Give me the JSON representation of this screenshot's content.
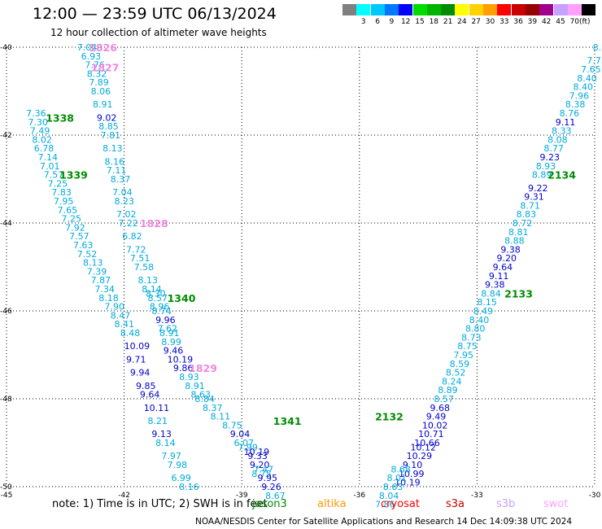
{
  "header": {
    "title": "12:00 — 23:59 UTC 06/13/2024",
    "subtitle": "12 hour collection of altimeter wave heights"
  },
  "legend": {
    "unit": "(ft)",
    "items": [
      {
        "color": "#808080",
        "label": ""
      },
      {
        "color": "#00ffff",
        "label": "3"
      },
      {
        "color": "#00c8ff",
        "label": "6"
      },
      {
        "color": "#0078ff",
        "label": "9"
      },
      {
        "color": "#0000ff",
        "label": "12"
      },
      {
        "color": "#00dc00",
        "label": "15"
      },
      {
        "color": "#00b400",
        "label": "18"
      },
      {
        "color": "#008c00",
        "label": "21"
      },
      {
        "color": "#ffff00",
        "label": "24"
      },
      {
        "color": "#ffd200",
        "label": "27"
      },
      {
        "color": "#ffa000",
        "label": "30"
      },
      {
        "color": "#ff0000",
        "label": "33"
      },
      {
        "color": "#c80000",
        "label": "36"
      },
      {
        "color": "#960000",
        "label": "39"
      },
      {
        "color": "#a0008c",
        "label": "42"
      },
      {
        "color": "#c8a0ff",
        "label": "45"
      },
      {
        "color": "#ffa0ff",
        "label": "70"
      },
      {
        "color": "#000000",
        "label": ""
      }
    ]
  },
  "chart_data": {
    "type": "scatter",
    "title": "12:00 — 23:59 UTC 06/13/2024",
    "subtitle": "12 hour collection of altimeter wave heights",
    "xlim": [
      -45,
      -30
    ],
    "ylim": [
      -50,
      -40
    ],
    "x_ticks": [
      -45,
      -42,
      -39,
      -36,
      -33,
      -30
    ],
    "y_ticks": [
      -40,
      -42,
      -44,
      -46,
      -48,
      -50
    ],
    "x_tick_labels": [
      "-45",
      "-42",
      "-39",
      "-36",
      "-33",
      "-30"
    ],
    "y_tick_labels": [
      "-40",
      "-42",
      "-44",
      "-46",
      "-48",
      "-50"
    ],
    "grid": true,
    "series": [
      {
        "name": "jason3",
        "color": "#00aadd",
        "points": [
          {
            "x": -43.2,
            "y": -40.0,
            "v": "7.04"
          },
          {
            "x": -43.1,
            "y": -40.2,
            "v": "6.93"
          },
          {
            "x": -43.0,
            "y": -40.4,
            "v": "7.76"
          },
          {
            "x": -42.95,
            "y": -40.6,
            "v": "8.32"
          },
          {
            "x": -42.9,
            "y": -40.8,
            "v": "7.89"
          },
          {
            "x": -42.85,
            "y": -41.0,
            "v": "8.06"
          },
          {
            "x": -42.8,
            "y": -41.3,
            "v": "8.91"
          },
          {
            "x": -42.7,
            "y": -41.6,
            "v": "9.02"
          },
          {
            "x": -42.65,
            "y": -41.8,
            "v": "8.85"
          },
          {
            "x": -42.6,
            "y": -42.0,
            "v": "7.81"
          },
          {
            "x": -42.55,
            "y": -42.3,
            "v": "8.13"
          },
          {
            "x": -42.5,
            "y": -42.6,
            "v": "8.16"
          },
          {
            "x": -42.45,
            "y": -42.8,
            "v": "7.11"
          },
          {
            "x": -42.35,
            "y": -43.0,
            "v": "8.37"
          },
          {
            "x": -42.3,
            "y": -43.3,
            "v": "7.04"
          },
          {
            "x": -42.25,
            "y": -43.5,
            "v": "8.23"
          },
          {
            "x": -42.2,
            "y": -43.8,
            "v": "7.02"
          },
          {
            "x": -42.15,
            "y": -44.0,
            "v": "7.22"
          },
          {
            "x": -42.05,
            "y": -44.3,
            "v": "6.82"
          },
          {
            "x": -41.95,
            "y": -44.6,
            "v": "7.72"
          },
          {
            "x": -41.85,
            "y": -44.8,
            "v": "7.51"
          },
          {
            "x": -41.75,
            "y": -45.0,
            "v": "7.58"
          },
          {
            "x": -41.65,
            "y": -45.3,
            "v": "8.13"
          },
          {
            "x": -41.55,
            "y": -45.5,
            "v": "8.14"
          },
          {
            "x": -41.45,
            "y": -45.6,
            "v": "8.30"
          },
          {
            "x": -41.4,
            "y": -45.7,
            "v": "8.57"
          },
          {
            "x": -41.35,
            "y": -45.9,
            "v": "8.96"
          },
          {
            "x": -41.3,
            "y": -46.0,
            "v": "8.74"
          },
          {
            "x": -41.2,
            "y": -46.2,
            "v": "9.96"
          },
          {
            "x": -41.15,
            "y": -46.4,
            "v": "7.62"
          },
          {
            "x": -41.1,
            "y": -46.5,
            "v": "8.91"
          },
          {
            "x": -41.05,
            "y": -46.7,
            "v": "8.99"
          },
          {
            "x": -41.0,
            "y": -46.9,
            "v": "9.46"
          },
          {
            "x": -40.9,
            "y": -47.1,
            "v": "10.19"
          },
          {
            "x": -40.75,
            "y": -47.3,
            "v": "9.86"
          },
          {
            "x": -40.6,
            "y": -47.5,
            "v": "8.93"
          },
          {
            "x": -40.45,
            "y": -47.7,
            "v": "8.91"
          },
          {
            "x": -40.3,
            "y": -47.9,
            "v": "8.63"
          },
          {
            "x": -40.2,
            "y": -48.0,
            "v": "8.84"
          },
          {
            "x": -40.0,
            "y": -48.2,
            "v": "8.37"
          },
          {
            "x": -39.8,
            "y": -48.4,
            "v": "8.11"
          },
          {
            "x": -39.5,
            "y": -48.6,
            "v": "8.75"
          },
          {
            "x": -39.3,
            "y": -48.8,
            "v": "9.04"
          },
          {
            "x": -39.2,
            "y": -49.0,
            "v": "6.07"
          },
          {
            "x": -39.1,
            "y": -49.1,
            "v": "7.99"
          },
          {
            "x": -38.95,
            "y": -49.2,
            "v": "10.19"
          },
          {
            "x": -38.85,
            "y": -49.3,
            "v": "9.33"
          },
          {
            "x": -38.8,
            "y": -49.5,
            "v": "9.20"
          },
          {
            "x": -38.75,
            "y": -49.7,
            "v": "8.75"
          },
          {
            "x": -38.7,
            "y": -49.6,
            "v": "7.47"
          },
          {
            "x": -38.6,
            "y": -49.8,
            "v": "9.95"
          },
          {
            "x": -38.5,
            "y": -50.0,
            "v": "9.26"
          },
          {
            "x": -38.4,
            "y": -50.2,
            "v": "8.67"
          }
        ]
      },
      {
        "name": "altika",
        "color": "#00aadd",
        "points": [
          {
            "x": -44.5,
            "y": -41.5,
            "v": "7.36"
          },
          {
            "x": -44.45,
            "y": -41.7,
            "v": "7.30"
          },
          {
            "x": -44.4,
            "y": -41.9,
            "v": "7.49"
          },
          {
            "x": -44.35,
            "y": -42.1,
            "v": "8.02"
          },
          {
            "x": -44.3,
            "y": -42.3,
            "v": "6.78"
          },
          {
            "x": -44.2,
            "y": -42.5,
            "v": "7.14"
          },
          {
            "x": -44.15,
            "y": -42.7,
            "v": "7.01"
          },
          {
            "x": -44.05,
            "y": -42.9,
            "v": "7.57"
          },
          {
            "x": -43.95,
            "y": -43.1,
            "v": "7.25"
          },
          {
            "x": -43.85,
            "y": -43.3,
            "v": "7.83"
          },
          {
            "x": -43.8,
            "y": -43.5,
            "v": "7.95"
          },
          {
            "x": -43.7,
            "y": -43.7,
            "v": "7.65"
          },
          {
            "x": -43.6,
            "y": -43.9,
            "v": "7.25"
          },
          {
            "x": -43.5,
            "y": -44.1,
            "v": "7.92"
          },
          {
            "x": -43.4,
            "y": -44.3,
            "v": "7.57"
          },
          {
            "x": -43.3,
            "y": -44.5,
            "v": "7.63"
          },
          {
            "x": -43.2,
            "y": -44.7,
            "v": "7.52"
          },
          {
            "x": -43.05,
            "y": -44.9,
            "v": "8.13"
          },
          {
            "x": -42.95,
            "y": -45.1,
            "v": "7.39"
          },
          {
            "x": -42.85,
            "y": -45.3,
            "v": "7.87"
          },
          {
            "x": -42.75,
            "y": -45.5,
            "v": "7.34"
          },
          {
            "x": -42.65,
            "y": -45.7,
            "v": "8.18"
          },
          {
            "x": -42.5,
            "y": -45.9,
            "v": "7.90"
          },
          {
            "x": -42.35,
            "y": -46.1,
            "v": "8.47"
          },
          {
            "x": -42.25,
            "y": -46.3,
            "v": "8.41"
          },
          {
            "x": -42.1,
            "y": -46.5,
            "v": "8.48"
          },
          {
            "x": -42.0,
            "y": -46.8,
            "v": "10.09"
          },
          {
            "x": -41.95,
            "y": -47.1,
            "v": "9.71"
          },
          {
            "x": -41.85,
            "y": -47.4,
            "v": "9.94"
          },
          {
            "x": -41.7,
            "y": -47.7,
            "v": "9.85"
          },
          {
            "x": -41.6,
            "y": -47.9,
            "v": "9.64"
          },
          {
            "x": -41.5,
            "y": -48.2,
            "v": "10.11"
          },
          {
            "x": -41.4,
            "y": -48.5,
            "v": "8.21"
          },
          {
            "x": -41.3,
            "y": -48.8,
            "v": "9.13"
          },
          {
            "x": -41.2,
            "y": -49.0,
            "v": "8.14"
          },
          {
            "x": -41.05,
            "y": -49.3,
            "v": "7.97"
          },
          {
            "x": -40.9,
            "y": -49.5,
            "v": "7.98"
          },
          {
            "x": -40.8,
            "y": -49.8,
            "v": "6.99"
          },
          {
            "x": -40.6,
            "y": -50.0,
            "v": "8.16"
          }
        ]
      },
      {
        "name": "cryosat",
        "color": "#00aadd",
        "points": [
          {
            "x": -30.05,
            "y": -40.0,
            "v": "8.28"
          },
          {
            "x": -30.2,
            "y": -40.3,
            "v": "7.75"
          },
          {
            "x": -30.35,
            "y": -40.5,
            "v": "7.65"
          },
          {
            "x": -30.45,
            "y": -40.7,
            "v": "8.40"
          },
          {
            "x": -30.55,
            "y": -40.9,
            "v": "8.40"
          },
          {
            "x": -30.65,
            "y": -41.1,
            "v": "7.96"
          },
          {
            "x": -30.75,
            "y": -41.3,
            "v": "8.38"
          },
          {
            "x": -30.9,
            "y": -41.5,
            "v": "8.76"
          },
          {
            "x": -31.0,
            "y": -41.7,
            "v": "9.11"
          },
          {
            "x": -31.1,
            "y": -41.9,
            "v": "8.33"
          },
          {
            "x": -31.2,
            "y": -42.1,
            "v": "8.08"
          },
          {
            "x": -31.3,
            "y": -42.3,
            "v": "8.77"
          },
          {
            "x": -31.4,
            "y": -42.5,
            "v": "9.23"
          },
          {
            "x": -31.5,
            "y": -42.7,
            "v": "8.93"
          },
          {
            "x": -31.6,
            "y": -42.9,
            "v": "8.89"
          },
          {
            "x": -31.7,
            "y": -43.2,
            "v": "9.22"
          },
          {
            "x": -31.8,
            "y": -43.4,
            "v": "9.31"
          },
          {
            "x": -31.9,
            "y": -43.6,
            "v": "8.71"
          },
          {
            "x": -32.0,
            "y": -43.8,
            "v": "8.83"
          },
          {
            "x": -32.1,
            "y": -44.0,
            "v": "8.72"
          },
          {
            "x": -32.2,
            "y": -44.2,
            "v": "8.81"
          },
          {
            "x": -32.3,
            "y": -44.4,
            "v": "8.88"
          },
          {
            "x": -32.4,
            "y": -44.6,
            "v": "9.38"
          },
          {
            "x": -32.5,
            "y": -44.8,
            "v": "9.20"
          },
          {
            "x": -32.6,
            "y": -45.0,
            "v": "9.64"
          },
          {
            "x": -32.7,
            "y": -45.2,
            "v": "9.11"
          },
          {
            "x": -32.8,
            "y": -45.4,
            "v": "9.38"
          },
          {
            "x": -32.9,
            "y": -45.6,
            "v": "8.84"
          },
          {
            "x": -33.0,
            "y": -45.8,
            "v": "8.15"
          },
          {
            "x": -33.1,
            "y": -46.0,
            "v": "8.49"
          },
          {
            "x": -33.2,
            "y": -46.2,
            "v": "8.40"
          },
          {
            "x": -33.3,
            "y": -46.4,
            "v": "8.80"
          },
          {
            "x": -33.4,
            "y": -46.6,
            "v": "8.73"
          },
          {
            "x": -33.5,
            "y": -46.8,
            "v": "8.75"
          },
          {
            "x": -33.6,
            "y": -47.0,
            "v": "7.95"
          },
          {
            "x": -33.7,
            "y": -47.2,
            "v": "8.59"
          },
          {
            "x": -33.8,
            "y": -47.4,
            "v": "8.52"
          },
          {
            "x": -33.9,
            "y": -47.6,
            "v": "8.24"
          },
          {
            "x": -34.0,
            "y": -47.8,
            "v": "8.89"
          },
          {
            "x": -34.1,
            "y": -48.0,
            "v": "8.57"
          },
          {
            "x": -34.2,
            "y": -48.2,
            "v": "9.68"
          },
          {
            "x": -34.3,
            "y": -48.4,
            "v": "9.49"
          },
          {
            "x": -34.4,
            "y": -48.6,
            "v": "10.02"
          },
          {
            "x": -34.5,
            "y": -48.8,
            "v": "10.71"
          },
          {
            "x": -34.6,
            "y": -49.0,
            "v": "10.66"
          },
          {
            "x": -34.7,
            "y": -49.1,
            "v": "10.12"
          },
          {
            "x": -34.8,
            "y": -49.3,
            "v": "10.29"
          },
          {
            "x": -34.9,
            "y": -49.5,
            "v": "9.10"
          },
          {
            "x": -35.0,
            "y": -49.7,
            "v": "10.99"
          },
          {
            "x": -35.1,
            "y": -49.9,
            "v": "10.19"
          },
          {
            "x": -35.2,
            "y": -49.6,
            "v": "8.68"
          },
          {
            "x": -35.3,
            "y": -49.8,
            "v": "8.01"
          },
          {
            "x": -35.4,
            "y": -50.0,
            "v": "8.63"
          },
          {
            "x": -35.5,
            "y": -50.2,
            "v": "8.04"
          },
          {
            "x": -35.6,
            "y": -50.4,
            "v": "7.86"
          }
        ]
      }
    ],
    "time_labels": [
      {
        "x": -42.9,
        "y": -40.0,
        "text": "1826",
        "color": "#ee88dd"
      },
      {
        "x": -42.85,
        "y": -40.45,
        "text": "1827",
        "color": "#ee88dd"
      },
      {
        "x": -44.0,
        "y": -41.6,
        "text": "1338",
        "color": "#008c00"
      },
      {
        "x": -43.65,
        "y": -42.9,
        "text": "1339",
        "color": "#008c00"
      },
      {
        "x": -41.6,
        "y": -44.0,
        "text": "1828",
        "color": "#ee88dd"
      },
      {
        "x": -40.9,
        "y": -45.7,
        "text": "1340",
        "color": "#008c00"
      },
      {
        "x": -40.35,
        "y": -47.3,
        "text": "1829",
        "color": "#ee88dd"
      },
      {
        "x": -38.2,
        "y": -48.5,
        "text": "1341",
        "color": "#008c00"
      },
      {
        "x": -32.3,
        "y": -45.6,
        "text": "2133",
        "color": "#008c00"
      },
      {
        "x": -31.2,
        "y": -42.9,
        "text": "2134",
        "color": "#008c00"
      },
      {
        "x": -35.6,
        "y": -48.4,
        "text": "2132",
        "color": "#008c00"
      }
    ]
  },
  "footer": {
    "note": "note:  1) Time is in UTC;  2) SWH is in feet",
    "missions": [
      {
        "label": "jason3",
        "color": "#008c00"
      },
      {
        "label": "altika",
        "color": "#ff9900"
      },
      {
        "label": "cryosat",
        "color": "#ff0000"
      },
      {
        "label": "s3a",
        "color": "#c80000"
      },
      {
        "label": "s3b",
        "color": "#c8a0ff"
      },
      {
        "label": "swot",
        "color": "#ffa0ff"
      }
    ],
    "credit": "NOAA/NESDIS Center for Satellite Applications and Research    14 Dec 14:09:38 UTC 2024"
  }
}
